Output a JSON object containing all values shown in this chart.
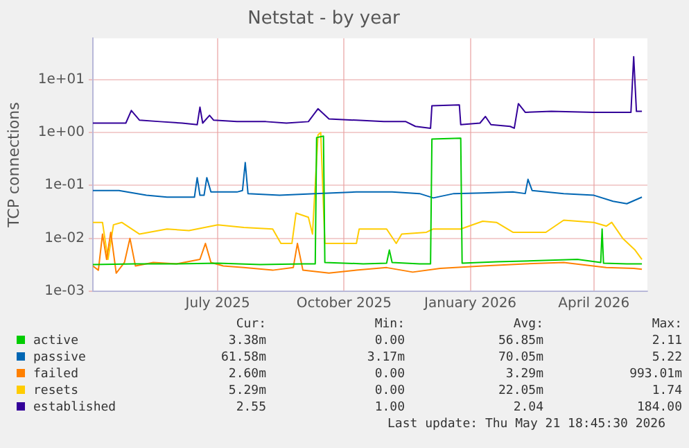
{
  "chart_data": {
    "type": "line",
    "title": "Netstat - by year",
    "ylabel": "TCP connections",
    "log": true,
    "grid": true,
    "legend": "bottom",
    "marker": "none",
    "xlim": [
      "2025-04-01",
      "2026-05-10"
    ],
    "xticks": [
      {
        "value": "2025-07-01",
        "label": "July 2025"
      },
      {
        "value": "2025-10-01",
        "label": "October 2025"
      },
      {
        "value": "2026-01-01",
        "label": "January 2026"
      },
      {
        "value": "2026-04-01",
        "label": "April 2026"
      }
    ],
    "ylim": [
      0.001,
      60
    ],
    "yticks": [
      {
        "value": 0.001,
        "label": "1e-03"
      },
      {
        "value": 0.01,
        "label": "1e-02"
      },
      {
        "value": 0.1,
        "label": "1e-01"
      },
      {
        "value": 1,
        "label": "1e+00"
      },
      {
        "value": 10,
        "label": "1e+01"
      }
    ],
    "series": [
      {
        "name": "active",
        "color": "#00cc00",
        "x": [
          "2025-04-01",
          "2025-05-01",
          "2025-06-01",
          "2025-07-01",
          "2025-08-01",
          "2025-09-01",
          "2025-09-10",
          "2025-09-11",
          "2025-09-16",
          "2025-09-17",
          "2025-10-15",
          "2025-11-01",
          "2025-11-03",
          "2025-11-05",
          "2025-11-25",
          "2025-12-03",
          "2025-12-04",
          "2025-12-25",
          "2025-12-26",
          "2026-01-20",
          "2026-02-20",
          "2026-03-20",
          "2026-04-06",
          "2026-04-07",
          "2026-04-08",
          "2026-04-25",
          "2026-05-06"
        ],
        "values": [
          0.0032,
          0.0033,
          0.0033,
          0.0034,
          0.0032,
          0.0033,
          0.0033,
          0.8,
          0.85,
          0.0035,
          0.0033,
          0.0034,
          0.006,
          0.0035,
          0.0033,
          0.0033,
          0.75,
          0.78,
          0.0034,
          0.0036,
          0.0038,
          0.004,
          0.0035,
          0.015,
          0.0034,
          0.0033,
          0.0033
        ]
      },
      {
        "name": "passive",
        "color": "#0066b3",
        "x": [
          "2025-04-01",
          "2025-04-20",
          "2025-05-10",
          "2025-05-25",
          "2025-06-10",
          "2025-06-14",
          "2025-06-16",
          "2025-06-18",
          "2025-06-21",
          "2025-06-23",
          "2025-06-26",
          "2025-07-15",
          "2025-07-19",
          "2025-07-21",
          "2025-07-23",
          "2025-08-15",
          "2025-09-10",
          "2025-10-10",
          "2025-11-05",
          "2025-11-25",
          "2025-12-05",
          "2025-12-20",
          "2026-01-10",
          "2026-02-01",
          "2026-02-10",
          "2026-02-12",
          "2026-02-15",
          "2026-03-10",
          "2026-04-01",
          "2026-04-15",
          "2026-04-25",
          "2026-05-06"
        ],
        "values": [
          0.08,
          0.08,
          0.065,
          0.06,
          0.06,
          0.06,
          0.14,
          0.065,
          0.065,
          0.14,
          0.075,
          0.075,
          0.08,
          0.27,
          0.07,
          0.065,
          0.07,
          0.075,
          0.075,
          0.07,
          0.058,
          0.07,
          0.072,
          0.075,
          0.07,
          0.13,
          0.08,
          0.07,
          0.065,
          0.05,
          0.045,
          0.06
        ]
      },
      {
        "name": "failed",
        "color": "#ff8000",
        "x": [
          "2025-04-01",
          "2025-04-05",
          "2025-04-08",
          "2025-04-11",
          "2025-04-14",
          "2025-04-18",
          "2025-04-24",
          "2025-04-28",
          "2025-05-02",
          "2025-05-15",
          "2025-06-01",
          "2025-06-18",
          "2025-06-22",
          "2025-06-26",
          "2025-07-05",
          "2025-07-20",
          "2025-08-10",
          "2025-08-25",
          "2025-08-28",
          "2025-09-01",
          "2025-09-20",
          "2025-10-10",
          "2025-11-01",
          "2025-11-20",
          "2025-12-10",
          "2026-01-10",
          "2026-02-10",
          "2026-03-10",
          "2026-04-10",
          "2026-04-30",
          "2026-05-06"
        ],
        "values": [
          0.003,
          0.0025,
          0.012,
          0.004,
          0.013,
          0.0022,
          0.0035,
          0.01,
          0.003,
          0.0035,
          0.0033,
          0.004,
          0.008,
          0.0035,
          0.003,
          0.0028,
          0.0025,
          0.0028,
          0.008,
          0.0025,
          0.0022,
          0.0025,
          0.0028,
          0.0023,
          0.0027,
          0.003,
          0.0033,
          0.0035,
          0.0028,
          0.0027,
          0.0026
        ]
      },
      {
        "name": "resets",
        "color": "#ffcc00",
        "x": [
          "2025-04-01",
          "2025-04-08",
          "2025-04-12",
          "2025-04-16",
          "2025-04-22",
          "2025-05-05",
          "2025-05-25",
          "2025-06-10",
          "2025-07-01",
          "2025-07-20",
          "2025-08-10",
          "2025-08-16",
          "2025-08-24",
          "2025-08-27",
          "2025-09-05",
          "2025-09-08",
          "2025-09-12",
          "2025-09-14",
          "2025-09-17",
          "2025-10-10",
          "2025-10-12",
          "2025-11-01",
          "2025-11-08",
          "2025-11-12",
          "2025-11-30",
          "2025-12-05",
          "2025-12-25",
          "2026-01-10",
          "2026-01-20",
          "2026-02-01",
          "2026-02-25",
          "2026-03-10",
          "2026-04-01",
          "2026-04-10",
          "2026-04-14",
          "2026-04-22",
          "2026-05-01",
          "2026-05-06"
        ],
        "values": [
          0.02,
          0.02,
          0.004,
          0.018,
          0.02,
          0.012,
          0.015,
          0.014,
          0.018,
          0.016,
          0.015,
          0.008,
          0.008,
          0.03,
          0.025,
          0.012,
          0.9,
          1.0,
          0.008,
          0.008,
          0.015,
          0.015,
          0.008,
          0.012,
          0.013,
          0.015,
          0.015,
          0.021,
          0.02,
          0.013,
          0.013,
          0.022,
          0.02,
          0.017,
          0.02,
          0.01,
          0.006,
          0.004
        ]
      },
      {
        "name": "established",
        "color": "#330099",
        "x": [
          "2025-04-01",
          "2025-04-15",
          "2025-04-25",
          "2025-04-29",
          "2025-05-05",
          "2025-05-20",
          "2025-06-05",
          "2025-06-16",
          "2025-06-18",
          "2025-06-20",
          "2025-06-25",
          "2025-06-28",
          "2025-07-15",
          "2025-08-05",
          "2025-08-20",
          "2025-09-05",
          "2025-09-12",
          "2025-09-20",
          "2025-10-10",
          "2025-10-30",
          "2025-11-15",
          "2025-11-22",
          "2025-12-03",
          "2025-12-04",
          "2025-12-24",
          "2025-12-25",
          "2026-01-08",
          "2026-01-12",
          "2026-01-16",
          "2026-01-30",
          "2026-02-02",
          "2026-02-05",
          "2026-02-10",
          "2026-03-01",
          "2026-04-01",
          "2026-04-28",
          "2026-04-30",
          "2026-05-02",
          "2026-05-06"
        ],
        "values": [
          1.5,
          1.5,
          1.5,
          2.6,
          1.7,
          1.6,
          1.5,
          1.4,
          3.0,
          1.5,
          2.1,
          1.7,
          1.6,
          1.6,
          1.5,
          1.6,
          2.8,
          1.8,
          1.7,
          1.6,
          1.6,
          1.3,
          1.2,
          3.2,
          3.3,
          1.4,
          1.5,
          2.0,
          1.4,
          1.3,
          1.2,
          3.5,
          2.4,
          2.5,
          2.4,
          2.4,
          27,
          2.5,
          2.5
        ]
      }
    ],
    "annotations": [
      "Cur:",
      "Min:",
      "Avg:",
      "Max:",
      "3.38m",
      "0.00",
      "56.85m",
      "2.11",
      "61.58m",
      "3.17m",
      "70.05m",
      "5.22",
      "2.60m",
      "0.00",
      "3.29m",
      "993.01m",
      "5.29m",
      "0.00",
      "22.05m",
      "1.74",
      "2.55",
      "1.00",
      "2.04",
      "184.00",
      "Last update: Thu May 21 18:45:30 2026"
    ]
  }
}
